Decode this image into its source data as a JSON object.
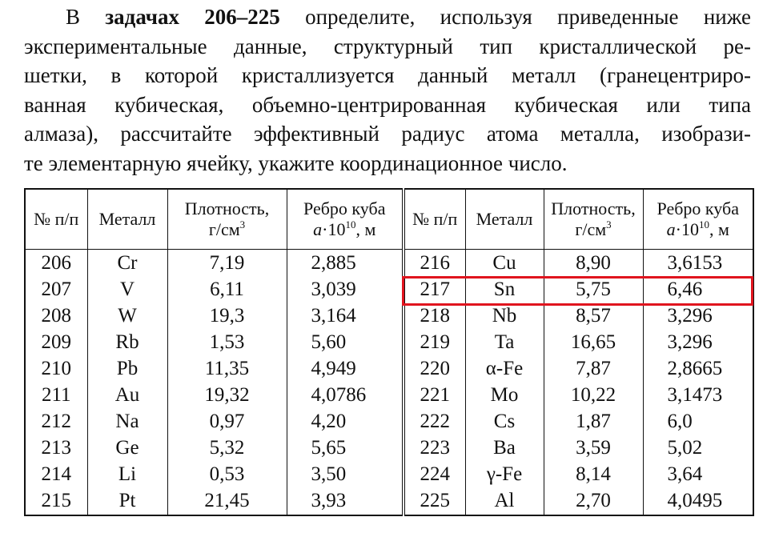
{
  "paragraph": {
    "first_line": {
      "before": "В",
      "bold": "задачах 206–225",
      "after": "определите, используя приведенные ниже"
    },
    "lines": [
      "экспериментальные данные, структурный тип кристаллической ре-",
      "шетки, в которой кристаллизуется данный металл (гранецентриро-",
      "ванная кубическая, объемно-центрированная кубическая или типа",
      "алмаза), рассчитайте эффективный радиус атома металла, изобрази-",
      "те элементарную ячейку, укажите координационное число."
    ]
  },
  "table": {
    "headers": {
      "number": "№ п/п",
      "metal": "Металл",
      "density": {
        "label": "Плотность,",
        "unit": "г/см",
        "sup": "3"
      },
      "edge": {
        "label": "Ребро куба",
        "var": "a",
        "factor": "·10",
        "sup": "10",
        "unit": ", м"
      }
    },
    "left_rows": [
      [
        "206",
        "Cr",
        "7,19",
        "2,885"
      ],
      [
        "207",
        "V",
        "6,11",
        "3,039"
      ],
      [
        "208",
        "W",
        "19,3",
        "3,164"
      ],
      [
        "209",
        "Rb",
        "1,53",
        "5,60"
      ],
      [
        "210",
        "Pb",
        "11,35",
        "4,949"
      ],
      [
        "211",
        "Au",
        "19,32",
        "4,0786"
      ],
      [
        "212",
        "Na",
        "0,97",
        "4,20"
      ],
      [
        "213",
        "Ge",
        "5,32",
        "5,65"
      ],
      [
        "214",
        "Li",
        "0,53",
        "3,50"
      ],
      [
        "215",
        "Pt",
        "21,45",
        "3,93"
      ]
    ],
    "right_rows": [
      [
        "216",
        "Cu",
        "8,90",
        "3,6153"
      ],
      [
        "217",
        "Sn",
        "5,75",
        "6,46"
      ],
      [
        "218",
        "Nb",
        "8,57",
        "3,296"
      ],
      [
        "219",
        "Ta",
        "16,65",
        "3,296"
      ],
      [
        "220",
        "α-Fe",
        "7,87",
        "2,8665"
      ],
      [
        "221",
        "Mo",
        "10,22",
        "3,1473"
      ],
      [
        "222",
        "Cs",
        "1,87",
        "6,0"
      ],
      [
        "223",
        "Ba",
        "3,59",
        "5,02"
      ],
      [
        "224",
        "γ-Fe",
        "8,14",
        "3,64"
      ],
      [
        "225",
        "Al",
        "2,70",
        "4,0495"
      ]
    ]
  }
}
